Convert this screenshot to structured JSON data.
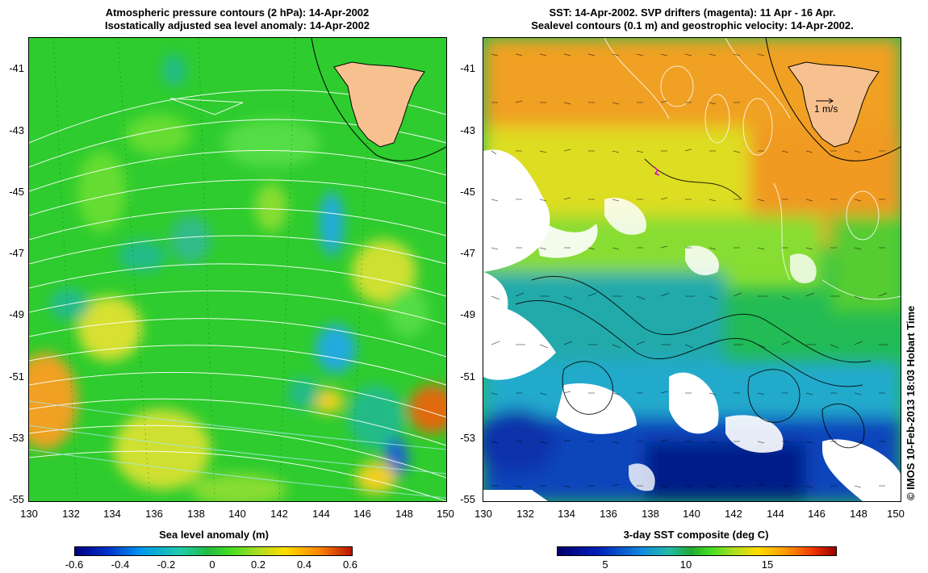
{
  "left_panel": {
    "title_line1": "Atmospheric pressure contours (2 hPa): 14-Apr-2002",
    "title_line2": "Isostatically adjusted sea level anomaly: 14-Apr-2002",
    "y_ticks": [
      "-41",
      "-43",
      "-45",
      "-47",
      "-49",
      "-51",
      "-53",
      "-55"
    ],
    "x_ticks": [
      "130",
      "132",
      "134",
      "136",
      "138",
      "140",
      "142",
      "144",
      "146",
      "148",
      "150"
    ],
    "colorbar": {
      "title": "Sea level anomaly (m)",
      "labels": [
        "-0.6",
        "-0.4",
        "-0.2",
        "0",
        "0.2",
        "0.4",
        "0.6"
      ]
    }
  },
  "right_panel": {
    "title_line1": "SST: 14-Apr-2002. SVP drifters (magenta): 11 Apr - 16 Apr.",
    "title_line2": "Sealevel contours (0.1 m) and geostrophic velocity: 14-Apr-2002.",
    "y_ticks": [
      "-41",
      "-43",
      "-45",
      "-47",
      "-49",
      "-51",
      "-53",
      "-55"
    ],
    "x_ticks": [
      "130",
      "132",
      "134",
      "136",
      "138",
      "140",
      "142",
      "144",
      "146",
      "148",
      "150"
    ],
    "velocity_scale_label": "1 m/s",
    "colorbar": {
      "title": "3-day SST composite (deg C)",
      "labels": [
        "5",
        "10",
        "15"
      ]
    }
  },
  "credit": "© IMOS 10-Feb-2013 18:03 Hobart Time",
  "colors": {
    "land": "#f7c08f",
    "ocean_green": "#33cc33",
    "sst_orange": "#f39b1e",
    "cloud": "#ffffff",
    "drifter": "#d000d0"
  }
}
